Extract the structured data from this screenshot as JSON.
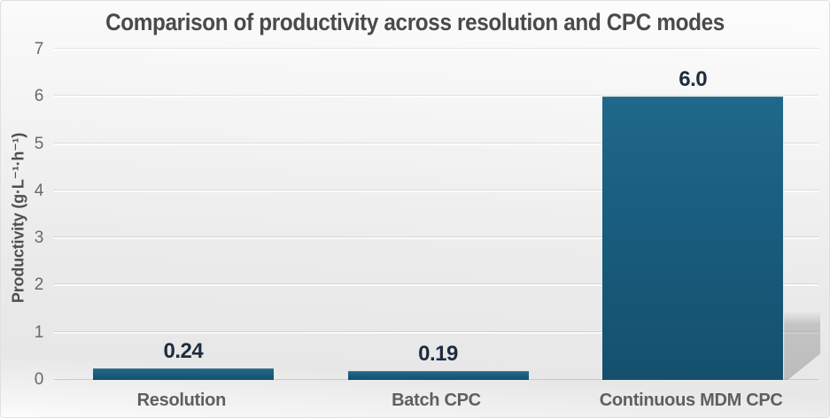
{
  "chart_data": {
    "type": "bar",
    "title": "Comparison of productivity across resolution and CPC modes",
    "categories": [
      "Resolution",
      "Batch CPC",
      "Continuous MDM CPC"
    ],
    "values": [
      0.24,
      0.19,
      6.0
    ],
    "value_labels": [
      "0.24",
      "0.19",
      "6.0"
    ],
    "xlabel": "",
    "ylabel": "Productivity (g·L⁻¹·h⁻¹)",
    "ylim": [
      0,
      7
    ],
    "yticks": [
      0,
      1,
      2,
      3,
      4,
      5,
      6,
      7
    ],
    "grid": "horizontal",
    "legend_position": "none",
    "colors": {
      "bar": "#1a5e80",
      "value_label_text": "#1e2c3f",
      "title_text": "#4a4a4a",
      "axis_text": "#696969",
      "category_text": "#5f5f5f",
      "gridline": "#dedede",
      "background_top": "#fdfdfd",
      "background_bottom": "#e7e7e7"
    }
  }
}
